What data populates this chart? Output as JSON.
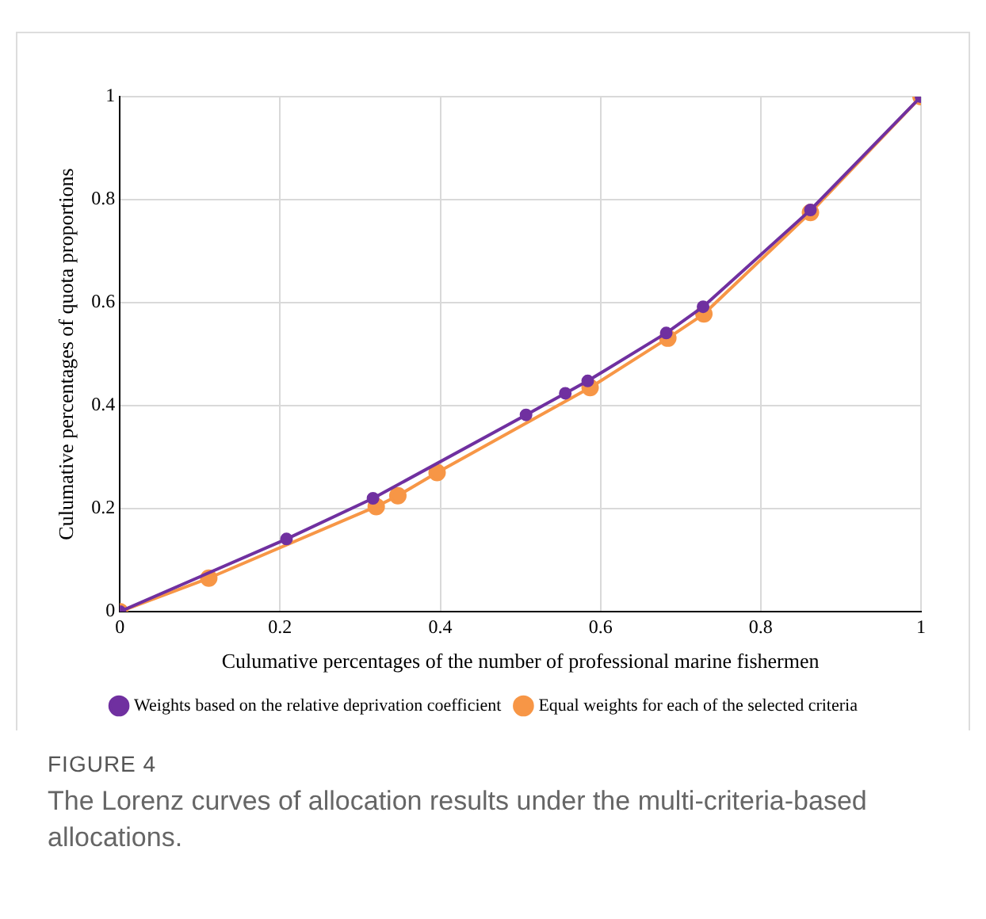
{
  "chart_data": {
    "type": "line",
    "xlabel": "Culumative percentages of the number of professional marine fishermen",
    "ylabel": "Culumative percentages of quota proportions",
    "series": [
      {
        "name": "Weights based on the relative deprivation coefficient",
        "color": "#7030a0",
        "x": [
          0,
          0.208,
          0.316,
          0.507,
          0.556,
          0.584,
          0.682,
          0.728,
          0.862,
          1
        ],
        "values": [
          0,
          0.141,
          0.22,
          0.382,
          0.424,
          0.448,
          0.541,
          0.592,
          0.78,
          1
        ]
      },
      {
        "name": "Equal weights for each of the selected criteria",
        "color": "#f79646",
        "x": [
          0,
          0.111,
          0.32,
          0.347,
          0.396,
          0.587,
          0.684,
          0.729,
          0.862,
          1
        ],
        "values": [
          0,
          0.065,
          0.204,
          0.225,
          0.27,
          0.435,
          0.531,
          0.578,
          0.775,
          1
        ]
      }
    ],
    "xlim": [
      0,
      1
    ],
    "ylim": [
      0,
      1
    ],
    "xticks": [
      0,
      0.2,
      0.4,
      0.6,
      0.8,
      1
    ],
    "yticks": [
      0,
      0.2,
      0.4,
      0.6,
      0.8,
      1
    ],
    "grid": true,
    "legend": "bottom",
    "marker": "circle",
    "line_style": "solid",
    "annotations": [
      "FIGURE 4",
      "The Lorenz curves of allocation results under the multi-criteria-based allocations."
    ]
  }
}
